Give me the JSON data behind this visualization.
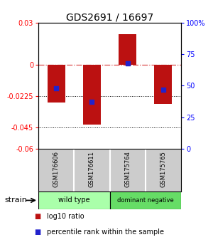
{
  "title": "GDS2691 / 16697",
  "samples": [
    "GSM176606",
    "GSM176611",
    "GSM175764",
    "GSM175765"
  ],
  "log10_ratio": [
    -0.027,
    -0.043,
    0.022,
    -0.028
  ],
  "percentile_rank": [
    48,
    37,
    68,
    47
  ],
  "bar_color": "#bb1111",
  "dot_color": "#2222cc",
  "ylim_left": [
    -0.06,
    0.03
  ],
  "ylim_right": [
    0,
    100
  ],
  "yticks_left": [
    0.03,
    0,
    -0.0225,
    -0.045,
    -0.06
  ],
  "yticks_right": [
    100,
    75,
    50,
    25,
    0
  ],
  "ytick_left_labels": [
    "0.03",
    "0",
    "-0.0225",
    "-0.045",
    "-0.06"
  ],
  "ytick_right_labels": [
    "100%",
    "75",
    "50",
    "25",
    "0"
  ],
  "dotted_lines": [
    -0.0225,
    -0.045
  ],
  "legend_red": "log10 ratio",
  "legend_blue": "percentile rank within the sample",
  "strain_label": "strain",
  "group_colors_unique": [
    "#aaffaa",
    "#66dd66"
  ],
  "sample_label_bg": "#cccccc",
  "background_color": "#ffffff",
  "bar_width": 0.5
}
